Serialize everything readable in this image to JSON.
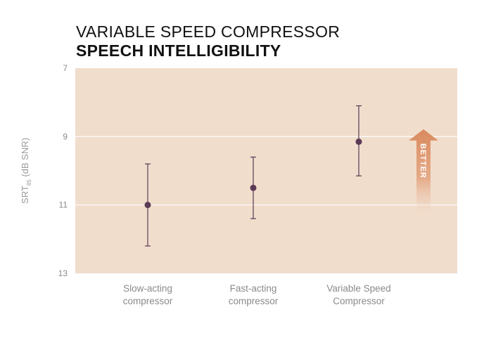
{
  "title": "VARIABLE SPEED COMPRESSOR",
  "subtitle": "SPEECH INTELLIGIBILITY",
  "colors": {
    "plot_background": "#f1ddcc",
    "gridline": "#ffffff",
    "marker": "#5b3a55",
    "arrow": "#d9895d"
  },
  "better_label": "BETTER",
  "chart_data": {
    "type": "scatter",
    "error_bars": true,
    "title": "VARIABLE SPEED COMPRESSOR",
    "subtitle": "SPEECH INTELLIGIBILITY",
    "ylabel": {
      "main": "SRT",
      "subscript": "85",
      "suffix": "(dB SNR)"
    },
    "xlabel": "",
    "y_axis_inverted": true,
    "ylim": [
      7,
      13
    ],
    "yticks": [
      7,
      9,
      11,
      13
    ],
    "grid": true,
    "categories": [
      {
        "line1": "Slow-acting",
        "line2": "compressor"
      },
      {
        "line1": "Fast-acting",
        "line2": "compressor"
      },
      {
        "line1": "Variable Speed",
        "line2": "Compressor"
      }
    ],
    "series": [
      {
        "values": [
          11.0,
          10.5,
          9.15
        ],
        "error_low": [
          12.2,
          11.4,
          10.15
        ],
        "error_high": [
          9.8,
          9.6,
          8.1
        ]
      }
    ],
    "annotations": [
      "BETTER"
    ]
  }
}
